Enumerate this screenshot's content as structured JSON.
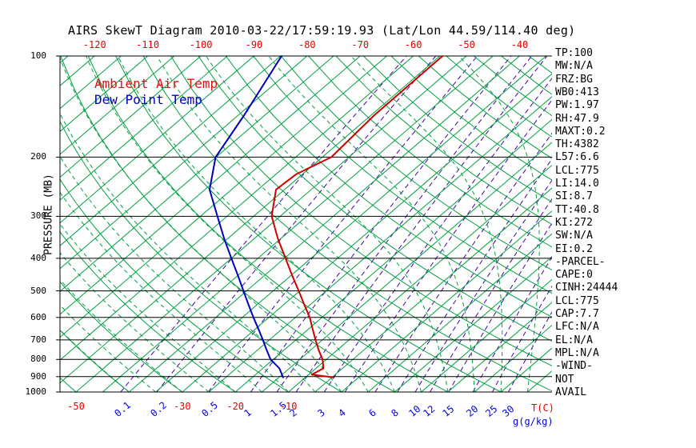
{
  "title": "AIRS SkewT Diagram 2010-03-22/17:59:19.93 (Lat/Lon 44.59/114.40 deg)",
  "legend": {
    "temp": "Ambient Air Temp",
    "dew": "Dew Point Temp"
  },
  "right_panel": [
    "TP:100",
    "MW:N/A",
    "FRZ:BG",
    "WB0:413",
    "PW:1.97",
    "RH:47.9",
    "MAXT:0.2",
    "TH:4382",
    "L57:6.6",
    "LCL:775",
    "LI:14.0",
    "SI:8.7",
    "TT:40.8",
    "KI:272",
    "SW:N/A",
    "EI:0.2",
    "-PARCEL-",
    "CAPE:0",
    "CINH:24444",
    "LCL:775",
    "CAP:7.7",
    "LFC:N/A",
    "EL:N/A",
    "MPL:N/A",
    "-WIND-",
    "NOT",
    "AVAIL"
  ],
  "colors": {
    "background_lines_green": "#00a040",
    "mixing_ratio_purple": "#4400aa",
    "grid_black": "#000000",
    "label_red": "#e60000",
    "label_blue": "#0000e6",
    "temp_profile_red": "#cc0000",
    "dew_profile_blue": "#0000bb"
  },
  "chart_data": {
    "type": "line",
    "variant": "skew-t-log-p",
    "title": "AIRS SkewT Diagram 2010-03-22/17:59:19.93 (Lat/Lon 44.59/114.40 deg)",
    "ylabel": "PRESSURE (MB)",
    "xlabel_temp": "T(C)",
    "xlabel_mixing": "g(g/kg)",
    "pressure_range_mb": [
      100,
      1000
    ],
    "pressure_ticks": [
      100,
      200,
      300,
      400,
      500,
      600,
      700,
      800,
      900,
      1000
    ],
    "top_temp_labels_c": [
      -120,
      -110,
      -100,
      -90,
      -80,
      -70,
      -60,
      -50,
      -40
    ],
    "bottom_temp_labels_c": [
      -50,
      -30,
      -20,
      -10
    ],
    "mixing_ratio_labels_gkg": [
      0.1,
      0.2,
      0.5,
      1,
      1.5,
      2,
      3,
      4,
      6,
      8,
      10,
      12,
      15,
      20,
      25,
      30
    ],
    "isotherm_step_c": 5,
    "dry_adiabat_step_c": 10,
    "moist_adiabat_step_c": 5,
    "grid": true,
    "legend_position": "top-left-inside",
    "series": [
      {
        "name": "Ambient Air Temp",
        "color": "#cc0000",
        "points_p_mb_t_c": [
          [
            905,
            -4.7
          ],
          [
            888,
            -9.4
          ],
          [
            850,
            -8.6
          ],
          [
            800,
            -10.7
          ],
          [
            750,
            -13.5
          ],
          [
            700,
            -16.3
          ],
          [
            650,
            -19.2
          ],
          [
            600,
            -22.3
          ],
          [
            550,
            -26.1
          ],
          [
            500,
            -30.2
          ],
          [
            450,
            -34.8
          ],
          [
            400,
            -39.8
          ],
          [
            350,
            -45.5
          ],
          [
            300,
            -51.6
          ],
          [
            250,
            -56.6
          ],
          [
            225,
            -56.2
          ],
          [
            200,
            -53.3
          ],
          [
            150,
            -54.4
          ],
          [
            100,
            -54.5
          ]
        ]
      },
      {
        "name": "Dew Point Temp",
        "color": "#0000bb",
        "points_p_mb_t_c": [
          [
            905,
            -14.2
          ],
          [
            850,
            -16.9
          ],
          [
            800,
            -20.5
          ],
          [
            750,
            -23.3
          ],
          [
            700,
            -26.2
          ],
          [
            650,
            -29.4
          ],
          [
            600,
            -32.9
          ],
          [
            550,
            -36.6
          ],
          [
            500,
            -40.6
          ],
          [
            450,
            -45.0
          ],
          [
            400,
            -50.0
          ],
          [
            350,
            -55.6
          ],
          [
            300,
            -61.8
          ],
          [
            250,
            -69.1
          ],
          [
            200,
            -75.1
          ],
          [
            150,
            -78.9
          ],
          [
            100,
            -84.8
          ]
        ]
      }
    ]
  }
}
